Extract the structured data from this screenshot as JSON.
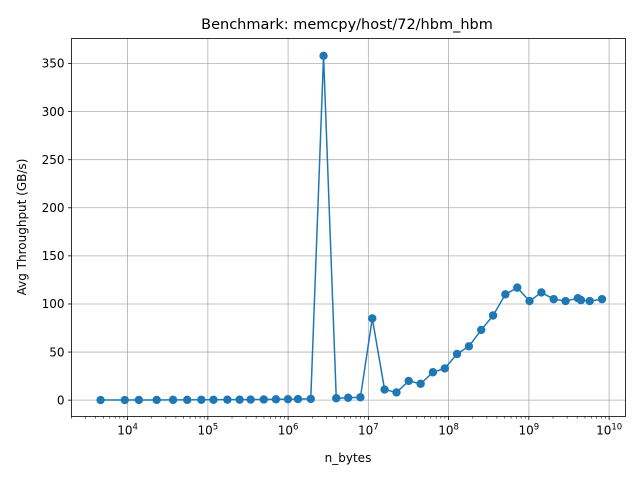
{
  "chart_data": {
    "type": "line",
    "title": "Benchmark: memcpy/host/72/hbm_hbm",
    "xlabel": "n_bytes",
    "ylabel": "Avg Throughput (GB/s)",
    "xscale": "log",
    "xlim": [
      2000,
      16000000000
    ],
    "ylim": [
      -17,
      376
    ],
    "grid": true,
    "x_ticks": [
      {
        "value": 10000,
        "base": "10",
        "exp": "4"
      },
      {
        "value": 100000,
        "base": "10",
        "exp": "5"
      },
      {
        "value": 1000000,
        "base": "10",
        "exp": "6"
      },
      {
        "value": 10000000,
        "base": "10",
        "exp": "7"
      },
      {
        "value": 100000000,
        "base": "10",
        "exp": "8"
      },
      {
        "value": 1000000000,
        "base": "10",
        "exp": "9"
      },
      {
        "value": 10000000000,
        "base": "10",
        "exp": "10"
      }
    ],
    "y_ticks": [
      {
        "value": 0,
        "label": "0"
      },
      {
        "value": 50,
        "label": "50"
      },
      {
        "value": 100,
        "label": "100"
      },
      {
        "value": 150,
        "label": "150"
      },
      {
        "value": 200,
        "label": "200"
      },
      {
        "value": 250,
        "label": "250"
      },
      {
        "value": 300,
        "label": "300"
      },
      {
        "value": 350,
        "label": "350"
      }
    ],
    "color": "#1f77b4",
    "series": [
      {
        "x": [
          4608,
          9216,
          13824,
          23040,
          36864,
          55296,
          82944,
          117504,
          175104,
          248832,
          341376,
          497664,
          705024,
          995328,
          1327104,
          1916928,
          2764800,
          3981312,
          5598720,
          7962624,
          11197440,
          15925248,
          22394880,
          31850496,
          44789760,
          63700992,
          89579520,
          127401984,
          179159040,
          254803968,
          358318080,
          509607936,
          716636160,
          1019215872,
          1433272320,
          2038431744,
          2866544640,
          4076863488,
          4460000000,
          5733089280,
          8153726976
        ],
        "y": [
          0.1,
          0.1,
          0.2,
          0.2,
          0.3,
          0.3,
          0.4,
          0.4,
          0.5,
          0.5,
          0.6,
          0.7,
          0.9,
          1.0,
          1.1,
          1.3,
          358,
          2.0,
          2.5,
          3.0,
          85,
          11,
          8,
          20,
          17,
          29,
          33,
          48,
          56,
          73,
          88,
          110,
          117,
          103,
          112,
          105,
          103,
          106,
          104,
          103,
          105
        ]
      }
    ]
  }
}
